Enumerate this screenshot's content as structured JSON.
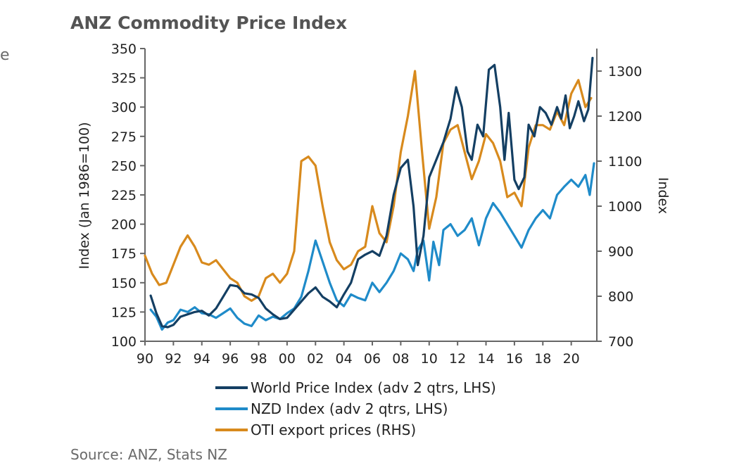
{
  "chart_data": {
    "type": "line",
    "title": "ANZ Commodity Price Index",
    "ylabel": "Index (Jan 1986=100)",
    "y2label": "Index",
    "xlim": [
      1990,
      2021.8
    ],
    "ylim": [
      100,
      350
    ],
    "y2lim": [
      700,
      1350
    ],
    "x_ticks": [
      "90",
      "92",
      "94",
      "96",
      "98",
      "00",
      "02",
      "04",
      "06",
      "08",
      "10",
      "12",
      "14",
      "16",
      "18",
      "20"
    ],
    "y_ticks": [
      100,
      125,
      150,
      175,
      200,
      225,
      250,
      275,
      300,
      325,
      350
    ],
    "y2_ticks": [
      700,
      800,
      900,
      1000,
      1100,
      1200,
      1300
    ],
    "legend_position": "bottom",
    "series": [
      {
        "name": "World Price Index (adv 2 qtrs, LHS)",
        "axis": "left",
        "color": "#143f63",
        "x": [
          1990.4,
          1990.8,
          1991.2,
          1991.6,
          1992.0,
          1992.5,
          1993.0,
          1993.5,
          1994.0,
          1994.5,
          1995.0,
          1995.5,
          1996.0,
          1996.5,
          1997.0,
          1997.5,
          1998.0,
          1998.5,
          1999.0,
          1999.5,
          2000.0,
          2000.5,
          2001.0,
          2001.5,
          2002.0,
          2002.5,
          2003.0,
          2003.5,
          2004.0,
          2004.5,
          2005.0,
          2005.5,
          2006.0,
          2006.5,
          2007.0,
          2007.5,
          2008.0,
          2008.5,
          2008.9,
          2009.2,
          2009.6,
          2010.0,
          2010.5,
          2011.0,
          2011.5,
          2011.9,
          2012.3,
          2012.7,
          2013.0,
          2013.4,
          2013.8,
          2014.2,
          2014.6,
          2015.0,
          2015.3,
          2015.6,
          2016.0,
          2016.3,
          2016.7,
          2017.0,
          2017.4,
          2017.8,
          2018.2,
          2018.6,
          2019.0,
          2019.3,
          2019.6,
          2019.9,
          2020.2,
          2020.5,
          2020.9,
          2021.2,
          2021.5
        ],
        "values": [
          139,
          124,
          113,
          112,
          114,
          121,
          123,
          125,
          126,
          122,
          128,
          138,
          148,
          147,
          141,
          140,
          137,
          128,
          123,
          119,
          120,
          127,
          134,
          141,
          146,
          138,
          134,
          129,
          140,
          150,
          170,
          174,
          177,
          173,
          190,
          225,
          248,
          255,
          215,
          165,
          190,
          240,
          255,
          270,
          290,
          317,
          300,
          262,
          255,
          285,
          275,
          332,
          336,
          300,
          255,
          295,
          238,
          230,
          240,
          285,
          275,
          300,
          295,
          285,
          300,
          290,
          310,
          282,
          292,
          305,
          288,
          298,
          342
        ]
      },
      {
        "name": "NZD Index (adv 2 qtrs, LHS)",
        "axis": "left",
        "color": "#1f8bc9",
        "x": [
          1990.4,
          1990.8,
          1991.2,
          1991.6,
          1992.0,
          1992.5,
          1993.0,
          1993.5,
          1994.0,
          1994.5,
          1995.0,
          1995.5,
          1996.0,
          1996.5,
          1997.0,
          1997.5,
          1998.0,
          1998.5,
          1999.0,
          1999.5,
          2000.0,
          2000.5,
          2001.0,
          2001.5,
          2002.0,
          2002.5,
          2003.0,
          2003.5,
          2004.0,
          2004.5,
          2005.0,
          2005.5,
          2006.0,
          2006.5,
          2007.0,
          2007.5,
          2008.0,
          2008.5,
          2008.9,
          2009.2,
          2009.6,
          2010.0,
          2010.3,
          2010.7,
          2011.0,
          2011.5,
          2012.0,
          2012.5,
          2013.0,
          2013.5,
          2014.0,
          2014.5,
          2015.0,
          2015.5,
          2016.0,
          2016.5,
          2017.0,
          2017.5,
          2018.0,
          2018.5,
          2019.0,
          2019.5,
          2020.0,
          2020.5,
          2021.0,
          2021.3,
          2021.6
        ],
        "values": [
          127,
          121,
          110,
          116,
          118,
          127,
          125,
          129,
          124,
          123,
          120,
          124,
          128,
          120,
          115,
          113,
          122,
          118,
          121,
          119,
          124,
          128,
          138,
          160,
          186,
          168,
          150,
          135,
          130,
          140,
          137,
          135,
          150,
          142,
          150,
          160,
          175,
          170,
          160,
          178,
          186,
          152,
          185,
          165,
          195,
          200,
          190,
          195,
          205,
          182,
          205,
          218,
          210,
          200,
          190,
          180,
          195,
          205,
          212,
          205,
          225,
          232,
          238,
          232,
          242,
          225,
          252
        ]
      },
      {
        "name": "OTI export prices (RHS)",
        "axis": "right",
        "color": "#d88a1d",
        "x": [
          1990.0,
          1990.5,
          1991.0,
          1991.5,
          1992.0,
          1992.5,
          1993.0,
          1993.5,
          1994.0,
          1994.5,
          1995.0,
          1995.5,
          1996.0,
          1996.5,
          1997.0,
          1997.5,
          1998.0,
          1998.5,
          1999.0,
          1999.5,
          2000.0,
          2000.5,
          2001.0,
          2001.5,
          2002.0,
          2002.5,
          2003.0,
          2003.5,
          2004.0,
          2004.5,
          2005.0,
          2005.5,
          2006.0,
          2006.5,
          2007.0,
          2007.5,
          2008.0,
          2008.5,
          2009.0,
          2009.5,
          2010.0,
          2010.5,
          2011.0,
          2011.5,
          2012.0,
          2012.5,
          2013.0,
          2013.5,
          2014.0,
          2014.5,
          2015.0,
          2015.5,
          2016.0,
          2016.5,
          2017.0,
          2017.5,
          2018.0,
          2018.5,
          2019.0,
          2019.5,
          2020.0,
          2020.5,
          2021.0,
          2021.4
        ],
        "values": [
          890,
          850,
          825,
          830,
          870,
          910,
          935,
          910,
          875,
          870,
          880,
          860,
          840,
          830,
          800,
          790,
          800,
          840,
          850,
          830,
          850,
          900,
          1100,
          1110,
          1090,
          1000,
          920,
          880,
          860,
          870,
          900,
          910,
          1000,
          940,
          920,
          1000,
          1120,
          1200,
          1300,
          1120,
          950,
          1020,
          1140,
          1170,
          1180,
          1120,
          1060,
          1100,
          1160,
          1140,
          1100,
          1020,
          1030,
          1000,
          1130,
          1180,
          1180,
          1170,
          1210,
          1180,
          1250,
          1280,
          1220,
          1240
        ]
      }
    ]
  },
  "edge_text": "e",
  "source": "Source: ANZ, Stats NZ"
}
